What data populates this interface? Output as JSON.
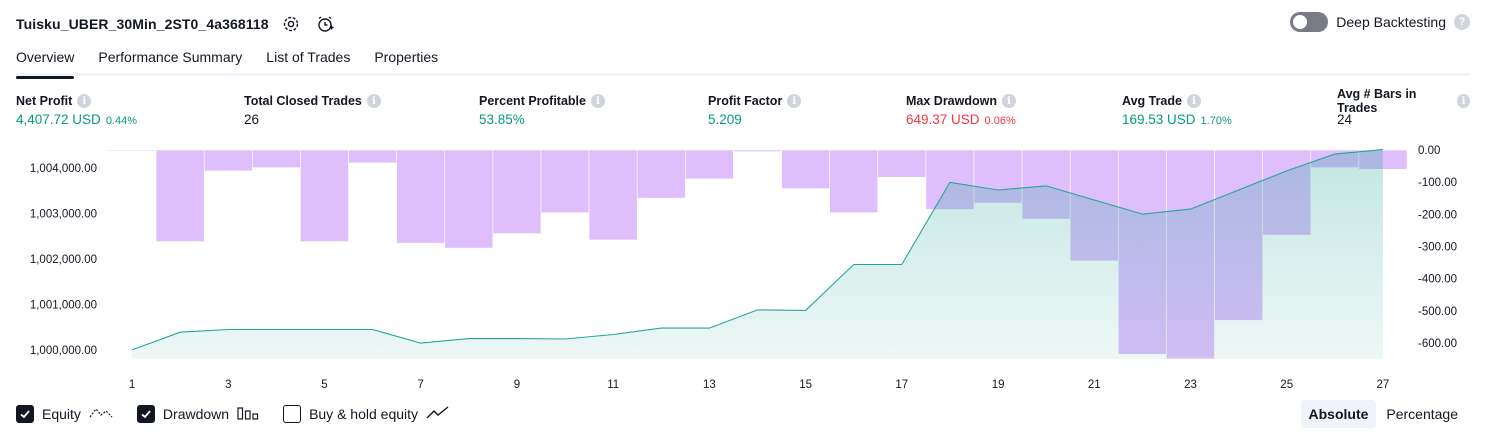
{
  "header": {
    "strategy_name": "Tuisku_UBER_30Min_2ST0_4a368118",
    "settings_icon": "gear-icon",
    "alert_icon": "add-alert-clock-icon",
    "deep_backtesting_label": "Deep Backtesting",
    "deep_backtesting_enabled": false,
    "help_glyph": "?"
  },
  "tabs": [
    {
      "label": "Overview",
      "active": true
    },
    {
      "label": "Performance Summary",
      "active": false
    },
    {
      "label": "List of Trades",
      "active": false
    },
    {
      "label": "Properties",
      "active": false
    }
  ],
  "metrics": [
    {
      "label": "Net Profit",
      "value": "4,407.72 USD",
      "pct": "0.44%",
      "tone": "pos"
    },
    {
      "label": "Total Closed Trades",
      "value": "26",
      "pct": "",
      "tone": "plain"
    },
    {
      "label": "Percent Profitable",
      "value": "53.85%",
      "pct": "",
      "tone": "pos"
    },
    {
      "label": "Profit Factor",
      "value": "5.209",
      "pct": "",
      "tone": "pos"
    },
    {
      "label": "Max Drawdown",
      "value": "649.37 USD",
      "pct": "0.06%",
      "tone": "neg"
    },
    {
      "label": "Avg Trade",
      "value": "169.53 USD",
      "pct": "1.70%",
      "tone": "pos"
    },
    {
      "label": "Avg # Bars in Trades",
      "value": "24",
      "pct": "",
      "tone": "plain"
    }
  ],
  "info_glyph": "i",
  "chart_data": {
    "type": "line",
    "x": [
      1,
      2,
      3,
      4,
      5,
      6,
      7,
      8,
      9,
      10,
      11,
      12,
      13,
      14,
      15,
      16,
      17,
      18,
      19,
      20,
      21,
      22,
      23,
      24,
      25,
      26,
      27
    ],
    "x_tick_labels": [
      "1",
      "3",
      "5",
      "7",
      "9",
      "11",
      "13",
      "15",
      "17",
      "19",
      "21",
      "23",
      "25",
      "27"
    ],
    "left_axis": {
      "ticks": [
        "1,000,000.00",
        "1,001,000.00",
        "1,002,000.00",
        "1,003,000.00",
        "1,004,000.00"
      ],
      "ylim": [
        999800,
        1004400
      ]
    },
    "right_axis": {
      "ticks": [
        "0.00",
        "-100.00",
        "-200.00",
        "-300.00",
        "-400.00",
        "-500.00",
        "-600.00"
      ],
      "ylim": [
        -650,
        0
      ]
    },
    "series": [
      {
        "type": "area",
        "axis": "left",
        "color": "#26a69a",
        "values": [
          1000000,
          1000390,
          1000450,
          1000450,
          1000450,
          1000450,
          1000150,
          1000250,
          1000250,
          1000240,
          1000340,
          1000480,
          1000480,
          1000880,
          1000870,
          1001880,
          1001880,
          1003690,
          1003520,
          1003610,
          1003300,
          1002990,
          1003100,
          1003520,
          1003940,
          1004310,
          1004407.72
        ]
      },
      {
        "type": "bar",
        "axis": "right",
        "color": "#c38bfa",
        "values": [
          -2,
          -285,
          -65,
          -55,
          -285,
          -40,
          -290,
          -305,
          -260,
          -195,
          -280,
          -150,
          -90,
          -5,
          -120,
          -195,
          -85,
          -185,
          -165,
          -215,
          -345,
          -635,
          -649.37,
          -530,
          -265,
          -55,
          -60
        ]
      }
    ]
  },
  "legend": [
    {
      "label": "Equity",
      "checked": true,
      "icon": "equity-line-icon"
    },
    {
      "label": "Drawdown",
      "checked": true,
      "icon": "drawdown-bars-icon"
    },
    {
      "label": "Buy & hold equity",
      "checked": false,
      "icon": "buy-hold-line-icon"
    }
  ],
  "scale": {
    "absolute_label": "Absolute",
    "percentage_label": "Percentage",
    "active": "Absolute"
  },
  "colors": {
    "positive": "#089981",
    "negative": "#f23645",
    "equity_line": "#26a69a",
    "drawdown_bar": "#c38bfa"
  }
}
